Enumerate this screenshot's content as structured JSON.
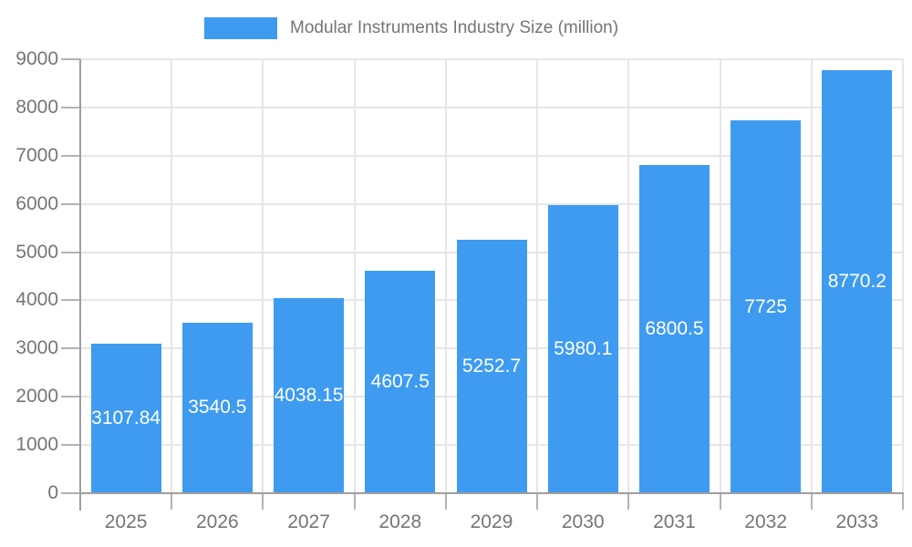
{
  "legend": {
    "label": "Modular Instruments Industry Size (million)"
  },
  "colors": {
    "bar": "#3e9bf0",
    "bar_label": "#ffffff",
    "grid": "#e6e6e6",
    "axis": "#9e9e9e",
    "tick": "#b3b3b3",
    "text": "#757575",
    "background": "#ffffff"
  },
  "chart_data": {
    "type": "bar",
    "title": "Modular Instruments Industry Size (million)",
    "xlabel": "",
    "ylabel": "",
    "categories": [
      "2025",
      "2026",
      "2027",
      "2028",
      "2029",
      "2030",
      "2031",
      "2032",
      "2033"
    ],
    "values": [
      3107.84,
      3540.5,
      4038.15,
      4607.5,
      5252.7,
      5980.1,
      6800.5,
      7725,
      8770.2
    ],
    "bar_labels": [
      "3107.84",
      "3540.5",
      "4038.15",
      "4607.5",
      "5252.7",
      "5980.1",
      "6800.5",
      "7725",
      "8770.2"
    ],
    "ylim": [
      0,
      9000
    ],
    "ytick_step": 1000,
    "ytick_labels": [
      "0",
      "1000",
      "2000",
      "3000",
      "4000",
      "5000",
      "6000",
      "7000",
      "8000",
      "9000"
    ],
    "grid": true,
    "legend_position": "top"
  }
}
